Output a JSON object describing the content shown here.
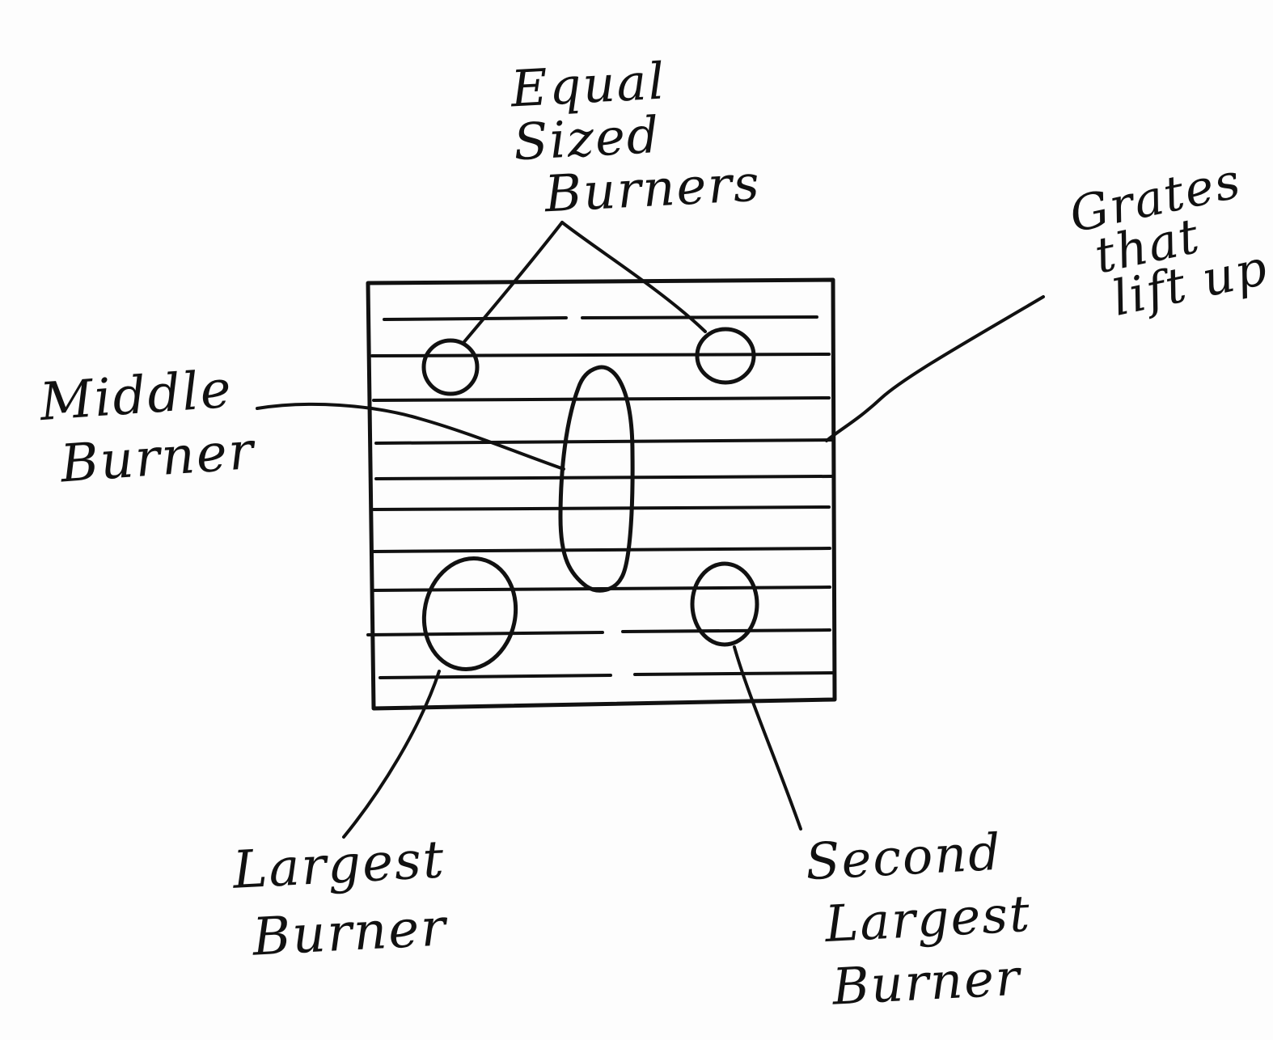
{
  "labels": {
    "equal_sized_burners": [
      "Equal",
      "Sized",
      "Burners"
    ],
    "grates_that_lift_up": [
      "Grates",
      "that",
      "lift up"
    ],
    "middle_burner": [
      "Middle",
      "Burner"
    ],
    "largest_burner": [
      "Largest",
      "Burner"
    ],
    "second_largest_burner": [
      "Second",
      "Largest",
      "Burner"
    ]
  },
  "colors": {
    "ink": "#111111",
    "paper": "#fdfdfd"
  }
}
